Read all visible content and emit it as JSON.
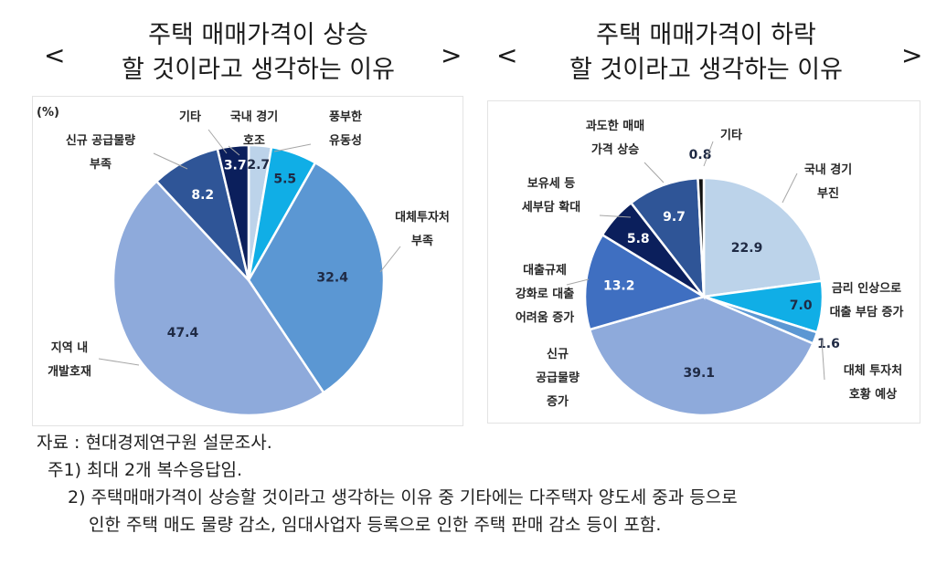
{
  "left": {
    "title_lines": [
      "주택 매매가격이 상승",
      "할 것이라고 생각하는 이유"
    ],
    "bracket_open": "<",
    "bracket_close": ">",
    "unit": "(%)"
  },
  "right": {
    "title_lines": [
      "주택 매매가격이 하락",
      "할 것이라고 생각하는 이유"
    ],
    "bracket_open": "<",
    "bracket_close": ">"
  },
  "notes": {
    "source": "자료 : 현대경제연구원 설문조사.",
    "note1": "주1) 최대 2개 복수응답임.",
    "note2_line1": "2) 주택매매가격이 상승할 것이라고 생각하는 이유 중 기타에는 다주택자 양도세 중과 등으로",
    "note2_line2": "인한 주택 매도 물량 감소, 임대사업자 등록으로 인한 주택 판매 감소 등이 포함."
  },
  "chart_data": [
    {
      "type": "pie",
      "title": "주택 매매가격이 상승할 것이라고 생각하는 이유",
      "unit": "%",
      "start": "12 o'clock, clockwise",
      "slices": [
        {
          "label": "국내 경기 호조",
          "value": 2.7,
          "color": "#bcd3ea",
          "text_color": "#1f2a44"
        },
        {
          "label": "풍부한 유동성",
          "value": 5.5,
          "color": "#10aee6",
          "text_color": "#1f2a44"
        },
        {
          "label": "대체투자처 부족",
          "value": 32.4,
          "color": "#5b97d3",
          "text_color": "#1f2a44"
        },
        {
          "label": "지역 내 개발호재",
          "value": 47.4,
          "color": "#8eaadb",
          "text_color": "#1f2a44"
        },
        {
          "label": "신규 공급물량 부족",
          "value": 8.2,
          "color": "#2f5597",
          "text_color": "#ffffff"
        },
        {
          "label": "기타",
          "value": 3.7,
          "color": "#0b1f5c",
          "text_color": "#ffffff"
        }
      ]
    },
    {
      "type": "pie",
      "title": "주택 매매가격이 하락할 것이라고 생각하는 이유",
      "unit": "%",
      "start": "12 o'clock, clockwise",
      "slices": [
        {
          "label": "국내 경기 부진",
          "value": 22.9,
          "color": "#bcd3ea",
          "text_color": "#1f2a44"
        },
        {
          "label": "금리 인상으로 대출 부담 증가",
          "value": 7.0,
          "color": "#10aee6",
          "text_color": "#1f2a44"
        },
        {
          "label": "대체 투자처 호황 예상",
          "value": 1.6,
          "color": "#5b97d3",
          "text_color": "#1f2a44"
        },
        {
          "label": "신규 공급물량 증가",
          "value": 39.1,
          "color": "#8eaadb",
          "text_color": "#1f2a44"
        },
        {
          "label": "대출규제 강화로 대출 어려움 증가",
          "value": 13.2,
          "color": "#3f6fc1",
          "text_color": "#ffffff"
        },
        {
          "label": "보유세 등 세부담 확대",
          "value": 5.8,
          "color": "#0b1f5c",
          "text_color": "#ffffff"
        },
        {
          "label": "과도한 매매 가격 상승",
          "value": 9.7,
          "color": "#2f5597",
          "text_color": "#ffffff"
        },
        {
          "label": "기타",
          "value": 0.8,
          "color": "#111111",
          "text_color": "#1f2a44"
        }
      ]
    }
  ],
  "label_lines": {
    "left": [
      [
        "국내 경기",
        "호조"
      ],
      [
        "풍부한",
        "유동성"
      ],
      [
        "대체투자처",
        "부족"
      ],
      [
        "지역 내",
        "개발호재"
      ],
      [
        "신규 공급물량",
        "부족"
      ],
      [
        "기타"
      ]
    ],
    "right": [
      [
        "국내 경기",
        "부진"
      ],
      [
        "금리 인상으로",
        "대출 부담 증가"
      ],
      [
        "대체 투자처",
        "호황 예상"
      ],
      [
        "신규",
        "공급물량",
        "증가"
      ],
      [
        "대출규제",
        "강화로 대출",
        "어려움 증가"
      ],
      [
        "보유세 등",
        "세부담 확대"
      ],
      [
        "과도한 매매",
        "가격 상승"
      ],
      [
        "기타"
      ]
    ]
  }
}
